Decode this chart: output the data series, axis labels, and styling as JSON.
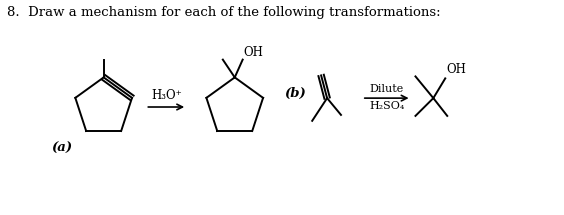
{
  "title": "8.  Draw a mechanism for each of the following transformations:",
  "title_fontsize": 9.5,
  "bg_color": "#ffffff",
  "label_a": "(a)",
  "label_b": "(b)",
  "reagent_a": "H₃O⁺",
  "reagent_b1": "Dilute",
  "reagent_b2": "H₂SO₄",
  "lw": 1.4
}
